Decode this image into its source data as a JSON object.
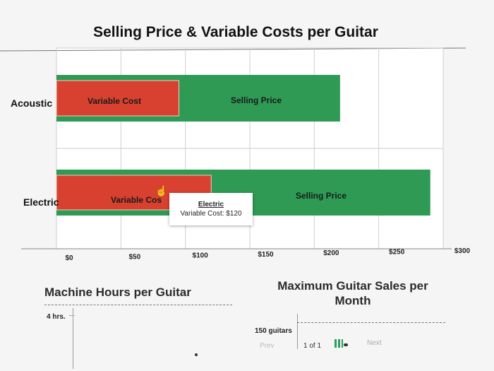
{
  "chart_data": {
    "type": "bar",
    "orientation": "horizontal",
    "title": "Selling Price & Variable Costs per Guitar",
    "categories": [
      "Acoustic",
      "Electric"
    ],
    "series": [
      {
        "name": "Selling Price",
        "values": [
          220,
          290
        ],
        "color": "#2e9a54"
      },
      {
        "name": "Variable Cost",
        "values": [
          95,
          120
        ],
        "color": "#d8412f"
      }
    ],
    "xlim": [
      0,
      300
    ],
    "ticks": [
      "$0",
      "$50",
      "$100",
      "$150",
      "$200",
      "$250",
      "$300"
    ],
    "tick_values": [
      0,
      50,
      100,
      150,
      200,
      250,
      300
    ],
    "grid": true,
    "legend": "none"
  },
  "chart": {
    "title": "Selling Price & Variable Costs per Guitar",
    "acoustic_label": "Acoustic",
    "electric_label": "Electric",
    "variable_cost_label": "Variable Cost",
    "variable_cost_label_clipped": "Variable Cos",
    "selling_price_label": "Selling Price"
  },
  "tooltip": {
    "title": "Electric",
    "text": "Variable Cost: $120"
  },
  "panels": {
    "left_title": "Machine Hours per Guitar",
    "left_value": "4 hrs.",
    "right_title": "Maximum Guitar Sales per Month",
    "right_value": "150 guitars"
  },
  "pager": {
    "prev": "Prev",
    "page": "1 of 1",
    "next": "Next"
  },
  "icons": {
    "cursor": "hand-pointer-icon",
    "grid": "grid-icon"
  }
}
